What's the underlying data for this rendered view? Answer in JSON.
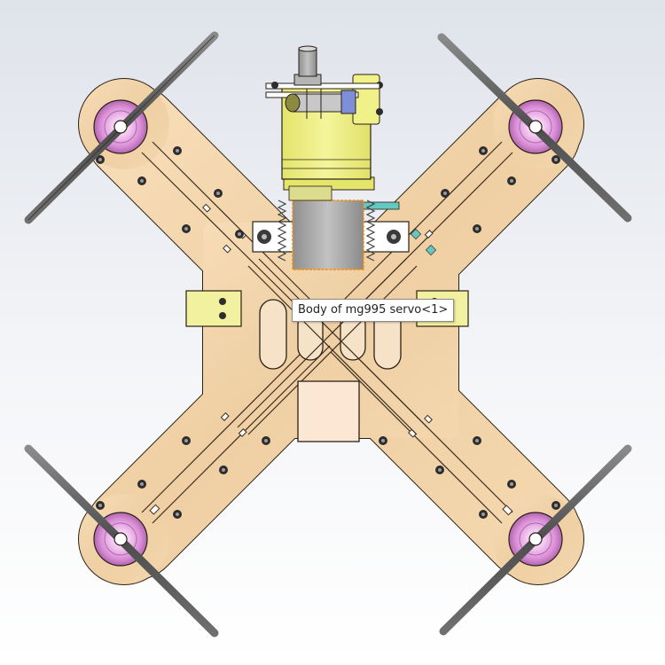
{
  "viewport": {
    "background_top": "#dfe3ea",
    "background_bottom": "#ffffff"
  },
  "model": {
    "frame_color": "#f1d2a8",
    "frame_outline": "#2a2016",
    "motor_mount_color": "#e9a4e6",
    "propeller_color": "#5f5f5f",
    "servo_color": "#eef08a",
    "servo_body_color": "#a9a9a9",
    "highlight_color": "#ff8c00",
    "battery_pad_color": "#fbe7d3"
  },
  "tooltip": {
    "text": "Body of mg995 servo<1>"
  }
}
